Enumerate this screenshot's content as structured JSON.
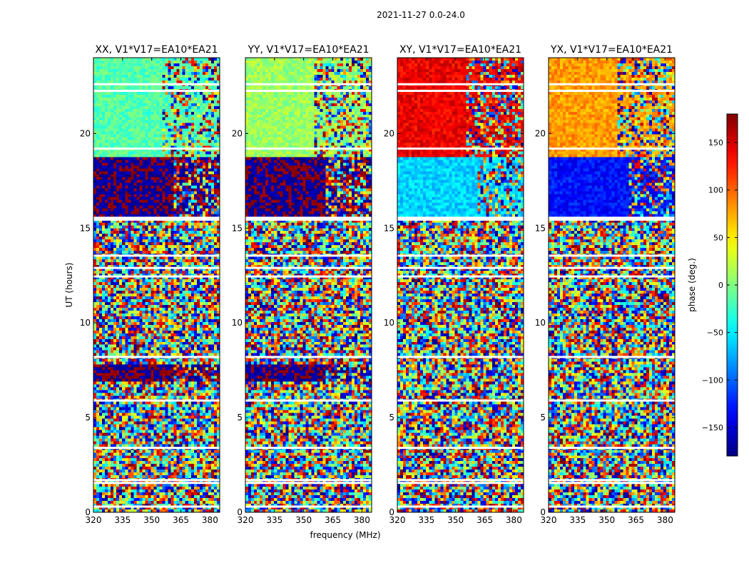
{
  "figure": {
    "suptitle": "2021-11-27 0.0-24.0"
  },
  "chart_data": {
    "type": "heatmap",
    "description_scope": "four dynamic-spectrum panels of visibility phase vs frequency and UT",
    "panels": [
      {
        "title": "XX, V1*V17=EA10*EA21",
        "polarization": "XX"
      },
      {
        "title": "YY, V1*V17=EA10*EA21",
        "polarization": "YY"
      },
      {
        "title": "XY, V1*V17=EA10*EA21",
        "polarization": "XY"
      },
      {
        "title": "YX, V1*V17=EA10*EA21",
        "polarization": "YX"
      }
    ],
    "xlabel": "frequency (MHz)",
    "ylabel": "UT (hours)",
    "xlim": [
      320,
      385
    ],
    "ylim": [
      0,
      24
    ],
    "xticks": [
      320,
      335,
      350,
      365,
      380
    ],
    "xtick_labels": [
      "320",
      "335",
      "350",
      "365",
      "380"
    ],
    "yticks": [
      0,
      5,
      10,
      15,
      20
    ],
    "ytick_labels": [
      "0",
      "5",
      "10",
      "15",
      "20"
    ],
    "colorbar": {
      "label": "phase (deg.)",
      "range": [
        -180,
        180
      ],
      "ticks": [
        -150,
        -100,
        -50,
        0,
        50,
        100,
        150
      ],
      "tick_labels": [
        "−150",
        "−100",
        "−50",
        "0",
        "50",
        "100",
        "150"
      ],
      "colormap": "jet"
    },
    "regions": [
      {
        "ut_start": 15.6,
        "ut_end": 18.7,
        "XX": -175,
        "YY": -175,
        "XY": -60,
        "YX": -130,
        "edge_noise_from_mhz": 362
      },
      {
        "ut_start": 18.7,
        "ut_end": 24.0,
        "XX": -15,
        "YY": 10,
        "XY": 140,
        "YX": 80,
        "edge_noise_from_mhz": 355
      },
      {
        "ut_start": 6.9,
        "ut_end": 7.8,
        "XX": -175,
        "YY": -175,
        "XY": null,
        "YX": null,
        "edge_noise_from_mhz": 362
      }
    ],
    "flagged_ut_hours": [
      0.3,
      1.55,
      1.7,
      3.4,
      5.9,
      8.2,
      12.45,
      12.9,
      13.55,
      15.45,
      15.55,
      19.2,
      22.25,
      22.6
    ]
  }
}
